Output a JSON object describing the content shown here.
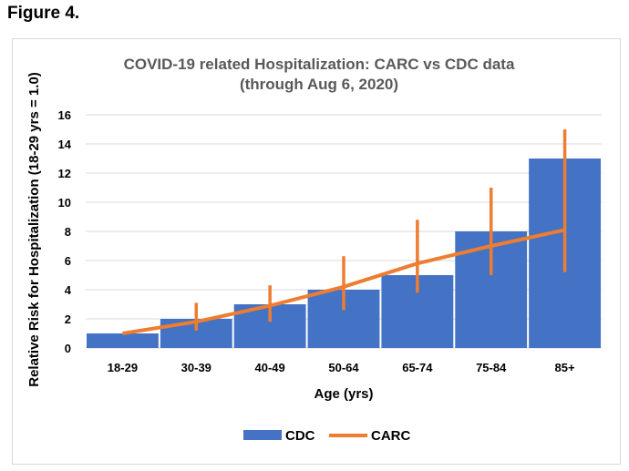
{
  "figure_label": "Figure 4.",
  "chart_data": {
    "type": "bar",
    "title": "COVID-19 related Hospitalization: CARC vs CDC data",
    "subtitle": "(through Aug 6, 2020)",
    "xlabel": "Age (yrs)",
    "ylabel": "Relative Risk for Hospitalization (18-29 yrs = 1.0)",
    "categories": [
      "18-29",
      "30-39",
      "40-49",
      "50-64",
      "65-74",
      "75-84",
      "85+"
    ],
    "ylim": [
      0,
      16
    ],
    "yticks": [
      0,
      2,
      4,
      6,
      8,
      10,
      12,
      14,
      16
    ],
    "grid": true,
    "legend_position": "bottom",
    "series": [
      {
        "name": "CDC",
        "kind": "bar",
        "color": "#4472c4",
        "values": [
          1,
          2,
          3,
          4,
          5,
          8,
          13
        ]
      },
      {
        "name": "CARC",
        "kind": "line",
        "color": "#ed7d31",
        "values": [
          1.0,
          1.8,
          2.9,
          4.2,
          5.8,
          7.0,
          8.1
        ],
        "error_low": [
          1.0,
          1.2,
          1.8,
          2.6,
          3.8,
          5.0,
          5.2
        ],
        "error_high": [
          1.0,
          3.1,
          4.3,
          6.3,
          8.8,
          11.0,
          15.0
        ]
      }
    ]
  }
}
